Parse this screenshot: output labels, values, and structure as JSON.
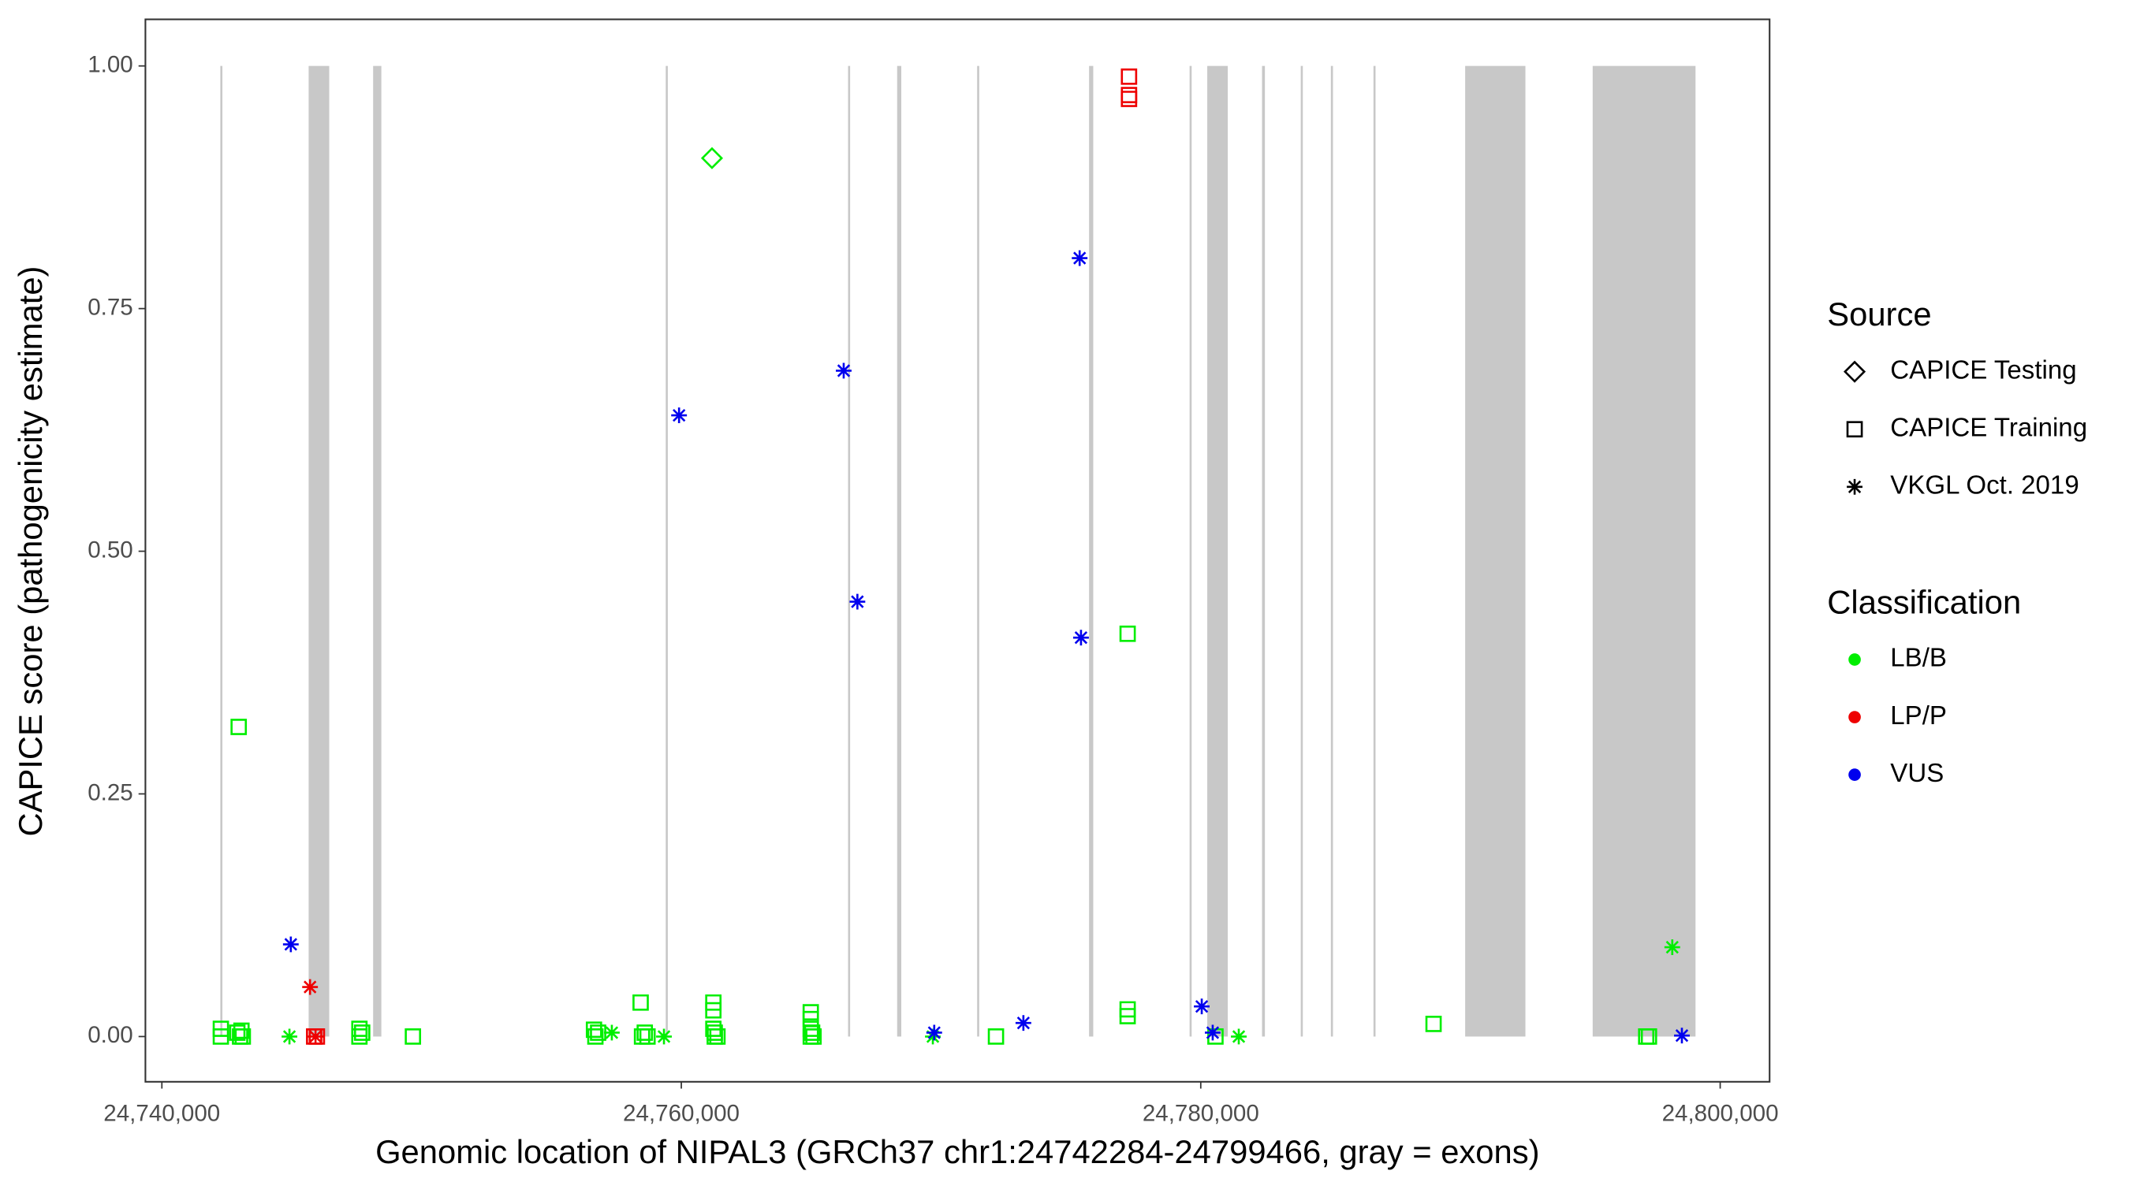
{
  "chart_data": {
    "type": "scatter",
    "x_label": "Genomic location of NIPAL3 (GRCh37 chr1:24742284-24799466, gray = exons)",
    "y_label": "CAPICE score (pathogenicity estimate)",
    "xlim": [
      24739366,
      24801902
    ],
    "ylim": [
      -0.0466,
      1.048
    ],
    "xticks": [
      {
        "value": 24740000,
        "label": "24,740,000"
      },
      {
        "value": 24760000,
        "label": "24,760,000"
      },
      {
        "value": 24780000,
        "label": "24,780,000"
      },
      {
        "value": 24800000,
        "label": "24,800,000"
      }
    ],
    "yticks": [
      {
        "value": 0,
        "label": "0.00"
      },
      {
        "value": 0.25,
        "label": "0.25"
      },
      {
        "value": 0.5,
        "label": "0.50"
      },
      {
        "value": 0.75,
        "label": "0.75"
      },
      {
        "value": 1,
        "label": "1.00"
      }
    ],
    "grid": false,
    "exon_color": "#c8c8c8",
    "exons": [
      [
        24742250,
        24742330
      ],
      [
        24745651,
        24746444
      ],
      [
        24748134,
        24748451
      ],
      [
        24759400,
        24759480
      ],
      [
        24766420,
        24766500
      ],
      [
        24768310,
        24768470
      ],
      [
        24771390,
        24771470
      ],
      [
        24775700,
        24775860
      ],
      [
        24779570,
        24779650
      ],
      [
        24780250,
        24781040
      ],
      [
        24782360,
        24782470
      ],
      [
        24783850,
        24783930
      ],
      [
        24785010,
        24785090
      ],
      [
        24786650,
        24786730
      ],
      [
        24790180,
        24792500
      ],
      [
        24795090,
        24799050
      ]
    ],
    "legend_position": "right",
    "legends": [
      {
        "title": "Source",
        "items": [
          {
            "label": "CAPICE Testing",
            "shape": "diamond"
          },
          {
            "label": "CAPICE Training",
            "shape": "square"
          },
          {
            "label": "VKGL Oct. 2019",
            "shape": "asterisk"
          }
        ]
      },
      {
        "title": "Classification",
        "items": [
          {
            "label": "LB/B",
            "color": "#00ee00"
          },
          {
            "label": "LP/P",
            "color": "#ee0000"
          },
          {
            "label": "VUS",
            "color": "#0000ee"
          }
        ]
      }
    ],
    "series": [
      {
        "source": "CAPICE Training",
        "classification": "LB/B",
        "x": [
          24742271,
          24742271,
          24742958,
          24742905,
          24743011,
          24743064,
          24743116,
          24747606,
          24747606,
          24747712,
          24749666,
          24756638,
          24756691,
          24756797,
          24758434,
          24758487,
          24758593,
          24758698,
          24761234,
          24761234,
          24761234,
          24761287,
          24761287,
          24761392,
          24764984,
          24764984,
          24764984,
          24765037,
          24764984,
          24765090,
          24772115,
          24777185,
          24777185,
          24777185,
          24780566,
          24788964,
          24797151,
          24797257
        ],
        "values": [
          0.008,
          0,
          0.319,
          0.004,
          0,
          0.006,
          0,
          0.008,
          0,
          0.004,
          0,
          0.007,
          0,
          0.004,
          0.035,
          0,
          0.004,
          0,
          0.035,
          0.027,
          0.008,
          0.004,
          0,
          0,
          0.025,
          0.018,
          0.008,
          0.004,
          0,
          0,
          0,
          0.415,
          0.028,
          0.021,
          0,
          0.013,
          0,
          0
        ]
      },
      {
        "source": "CAPICE Training",
        "classification": "LP/P",
        "x": [
          24777238,
          24777238,
          24777238,
          24745863,
          24745969
        ],
        "values": [
          0.989,
          0.97,
          0.966,
          0,
          0
        ]
      },
      {
        "source": "CAPICE Testing",
        "classification": "LB/B",
        "x": [
          24761181
        ],
        "values": [
          0.905
        ]
      },
      {
        "source": "VKGL Oct. 2019",
        "classification": "LB/B",
        "x": [
          24744912,
          24757325,
          24759332,
          24769685,
          24781464,
          24798155
        ],
        "values": [
          0,
          0.004,
          0,
          0,
          0,
          0.092
        ]
      },
      {
        "source": "VKGL Oct. 2019",
        "classification": "LP/P",
        "x": [
          24745705,
          24745916
        ],
        "values": [
          0.051,
          0
        ]
      },
      {
        "source": "VKGL Oct. 2019",
        "classification": "VUS",
        "x": [
          24744965,
          24759913,
          24766252,
          24766780,
          24775337,
          24775389,
          24769738,
          24773171,
          24780038,
          24780460,
          24798525
        ],
        "values": [
          0.095,
          0.64,
          0.686,
          0.448,
          0.802,
          0.411,
          0.004,
          0.014,
          0.031,
          0.004,
          0.001
        ]
      }
    ]
  }
}
